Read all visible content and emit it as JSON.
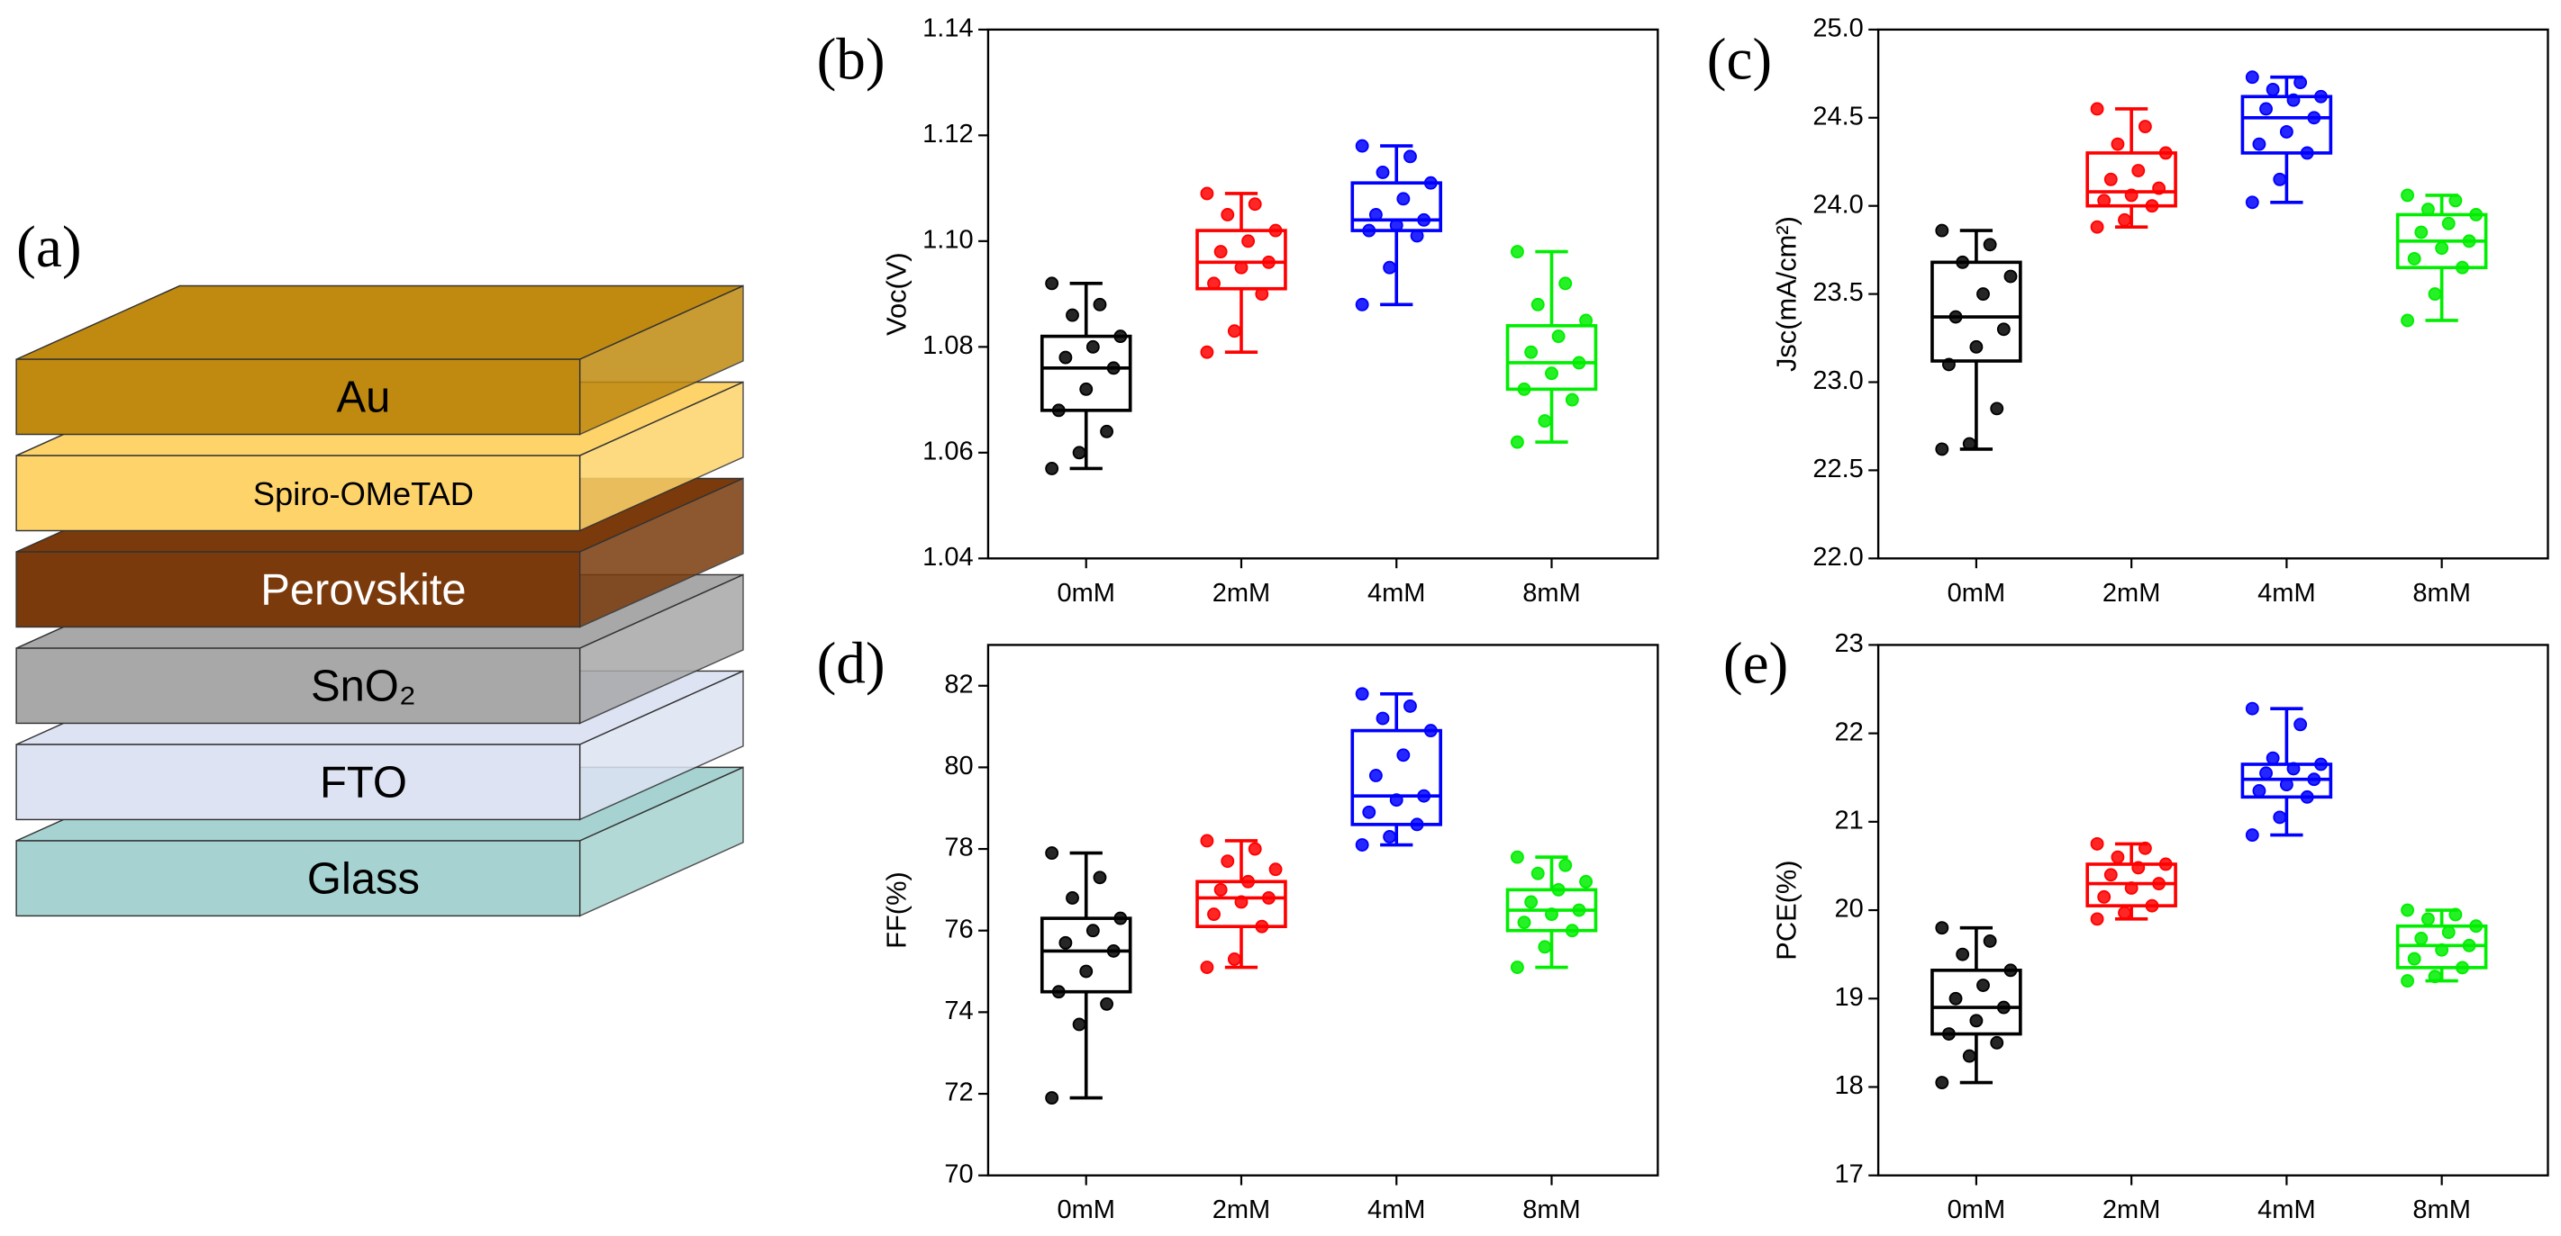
{
  "diagram": {
    "label": "(a)",
    "layers": [
      {
        "label": "Au",
        "color": "#c08a10",
        "text_color": "#000000"
      },
      {
        "label": "Spiro-OMeTAD",
        "color": "#fdd36a",
        "text_color": "#000000"
      },
      {
        "label": "Perovskite",
        "color": "#7a3a0c",
        "text_color": "#ffffff"
      },
      {
        "label": "SnO₂",
        "color": "#a8a8a8",
        "text_color": "#000000"
      },
      {
        "label": "FTO",
        "color": "#dde3f3",
        "text_color": "#000000"
      },
      {
        "label": "Glass",
        "color": "#a6d3d1",
        "text_color": "#000000"
      }
    ]
  },
  "chart_data": [
    {
      "type": "box",
      "panel": "(b)",
      "ylabel": "Voc(V)",
      "categories": [
        "0mM",
        "2mM",
        "4mM",
        "8mM"
      ],
      "colors": [
        "#000000",
        "#ff0000",
        "#0000ff",
        "#00ee00"
      ],
      "ylim": [
        1.04,
        1.14
      ],
      "yticks": [
        1.04,
        1.06,
        1.08,
        {
          "value": 1.1,
          "label": "1.10"
        },
        1.12,
        1.14
      ],
      "boxes": [
        {
          "min": 1.057,
          "q1": 1.068,
          "median": 1.076,
          "q3": 1.082,
          "max": 1.092,
          "points": [
            1.057,
            1.06,
            1.064,
            1.068,
            1.072,
            1.076,
            1.078,
            1.08,
            1.082,
            1.086,
            1.088,
            1.092
          ]
        },
        {
          "min": 1.079,
          "q1": 1.091,
          "median": 1.096,
          "q3": 1.102,
          "max": 1.109,
          "points": [
            1.079,
            1.083,
            1.09,
            1.092,
            1.095,
            1.096,
            1.098,
            1.1,
            1.102,
            1.105,
            1.107,
            1.109
          ]
        },
        {
          "min": 1.088,
          "q1": 1.102,
          "median": 1.104,
          "q3": 1.111,
          "max": 1.118,
          "points": [
            1.088,
            1.095,
            1.101,
            1.102,
            1.103,
            1.104,
            1.105,
            1.108,
            1.111,
            1.113,
            1.116,
            1.118
          ]
        },
        {
          "min": 1.062,
          "q1": 1.072,
          "median": 1.077,
          "q3": 1.084,
          "max": 1.098,
          "points": [
            1.062,
            1.066,
            1.07,
            1.072,
            1.075,
            1.077,
            1.079,
            1.082,
            1.085,
            1.088,
            1.092,
            1.098
          ]
        }
      ]
    },
    {
      "type": "box",
      "panel": "(c)",
      "ylabel": "Jsc(mA/cm²)",
      "categories": [
        "0mM",
        "2mM",
        "4mM",
        "8mM"
      ],
      "colors": [
        "#000000",
        "#ff0000",
        "#0000ff",
        "#00ee00"
      ],
      "ylim": [
        22,
        25
      ],
      "yticks": [
        {
          "value": 22,
          "label": "22.0"
        },
        22.5,
        {
          "value": 23,
          "label": "23.0"
        },
        23.5,
        {
          "value": 24,
          "label": "24.0"
        },
        24.5,
        {
          "value": 25,
          "label": "25.0"
        }
      ],
      "boxes": [
        {
          "min": 22.62,
          "q1": 23.12,
          "median": 23.37,
          "q3": 23.68,
          "max": 23.86,
          "points": [
            22.62,
            22.65,
            22.85,
            23.1,
            23.2,
            23.3,
            23.37,
            23.5,
            23.6,
            23.68,
            23.78,
            23.86
          ]
        },
        {
          "min": 23.88,
          "q1": 24.0,
          "median": 24.08,
          "q3": 24.3,
          "max": 24.55,
          "points": [
            23.88,
            23.92,
            24.0,
            24.03,
            24.06,
            24.1,
            24.15,
            24.2,
            24.3,
            24.35,
            24.45,
            24.55
          ]
        },
        {
          "min": 24.02,
          "q1": 24.3,
          "median": 24.5,
          "q3": 24.62,
          "max": 24.73,
          "points": [
            24.02,
            24.15,
            24.3,
            24.35,
            24.42,
            24.5,
            24.55,
            24.6,
            24.62,
            24.66,
            24.7,
            24.73
          ]
        },
        {
          "min": 23.35,
          "q1": 23.65,
          "median": 23.8,
          "q3": 23.95,
          "max": 24.06,
          "points": [
            23.35,
            23.5,
            23.65,
            23.7,
            23.76,
            23.8,
            23.85,
            23.9,
            23.95,
            23.98,
            24.03,
            24.06
          ]
        }
      ]
    },
    {
      "type": "box",
      "panel": "(d)",
      "ylabel": "FF(%)",
      "categories": [
        "0mM",
        "2mM",
        "4mM",
        "8mM"
      ],
      "colors": [
        "#000000",
        "#ff0000",
        "#0000ff",
        "#00ee00"
      ],
      "ylim": [
        70,
        83
      ],
      "yticks": [
        70,
        72,
        74,
        76,
        78,
        80,
        82
      ],
      "boxes": [
        {
          "min": 71.9,
          "q1": 74.5,
          "median": 75.5,
          "q3": 76.3,
          "max": 77.9,
          "points": [
            71.9,
            73.7,
            74.2,
            74.5,
            75.0,
            75.5,
            75.7,
            76.0,
            76.3,
            76.8,
            77.3,
            77.9
          ]
        },
        {
          "min": 75.1,
          "q1": 76.1,
          "median": 76.8,
          "q3": 77.2,
          "max": 78.2,
          "points": [
            75.1,
            75.3,
            76.1,
            76.4,
            76.7,
            76.8,
            77.0,
            77.2,
            77.5,
            77.7,
            78.0,
            78.2
          ]
        },
        {
          "min": 78.1,
          "q1": 78.6,
          "median": 79.3,
          "q3": 80.9,
          "max": 81.8,
          "points": [
            78.1,
            78.3,
            78.6,
            78.9,
            79.2,
            79.3,
            79.8,
            80.3,
            80.9,
            81.2,
            81.5,
            81.8
          ]
        },
        {
          "min": 75.1,
          "q1": 76.0,
          "median": 76.5,
          "q3": 77.0,
          "max": 77.8,
          "points": [
            75.1,
            75.6,
            76.0,
            76.2,
            76.4,
            76.5,
            76.7,
            77.0,
            77.2,
            77.4,
            77.6,
            77.8
          ]
        }
      ]
    },
    {
      "type": "box",
      "panel": "(e)",
      "ylabel": "PCE(%)",
      "categories": [
        "0mM",
        "2mM",
        "4mM",
        "8mM"
      ],
      "colors": [
        "#000000",
        "#ff0000",
        "#0000ff",
        "#00ee00"
      ],
      "ylim": [
        17,
        23
      ],
      "yticks": [
        17,
        18,
        19,
        20,
        21,
        22,
        23
      ],
      "boxes": [
        {
          "min": 18.05,
          "q1": 18.6,
          "median": 18.9,
          "q3": 19.32,
          "max": 19.8,
          "points": [
            18.05,
            18.35,
            18.5,
            18.6,
            18.75,
            18.9,
            19.0,
            19.15,
            19.32,
            19.5,
            19.65,
            19.8
          ]
        },
        {
          "min": 19.9,
          "q1": 20.05,
          "median": 20.3,
          "q3": 20.52,
          "max": 20.75,
          "points": [
            19.9,
            19.97,
            20.05,
            20.15,
            20.25,
            20.3,
            20.4,
            20.48,
            20.52,
            20.6,
            20.7,
            20.75
          ]
        },
        {
          "min": 20.85,
          "q1": 21.28,
          "median": 21.48,
          "q3": 21.65,
          "max": 22.28,
          "points": [
            20.85,
            21.05,
            21.28,
            21.35,
            21.42,
            21.48,
            21.55,
            21.6,
            21.65,
            21.72,
            22.1,
            22.28
          ]
        },
        {
          "min": 19.2,
          "q1": 19.35,
          "median": 19.6,
          "q3": 19.82,
          "max": 20.0,
          "points": [
            19.2,
            19.25,
            19.35,
            19.45,
            19.55,
            19.6,
            19.68,
            19.75,
            19.82,
            19.9,
            19.95,
            20.0
          ]
        }
      ]
    }
  ]
}
